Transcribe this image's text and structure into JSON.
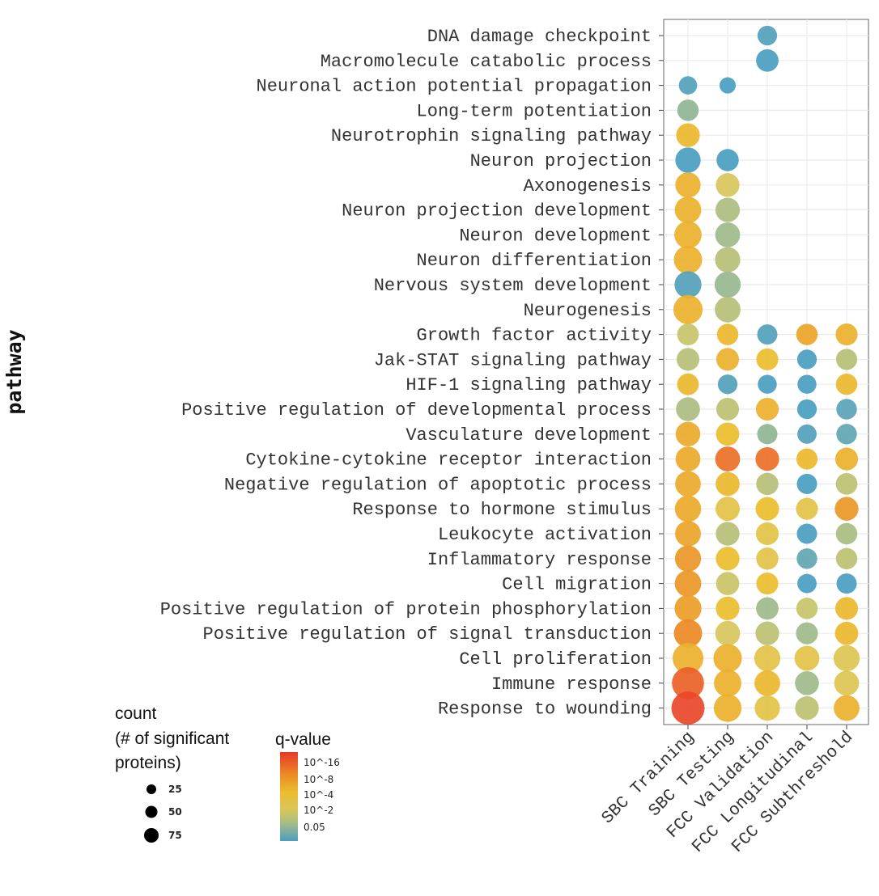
{
  "chart_data": {
    "type": "dot",
    "ylabel": "pathway",
    "xlabel": "",
    "categories_x": [
      "SBC Training",
      "SBC Testing",
      "FCC Validation",
      "FCC Longitudinal",
      "FCC Subthreshold"
    ],
    "categories_y": [
      "DNA damage checkpoint",
      "Macromolecule catabolic process",
      "Neuronal action potential propagation",
      "Long-term potentiation",
      "Neurotrophin signaling pathway",
      "Neuron projection",
      "Axonogenesis",
      "Neuron projection development",
      "Neuron development",
      "Neuron differentiation",
      "Nervous system development",
      "Neurogenesis",
      "Growth factor activity",
      "Jak-STAT signaling pathway",
      "HIF-1 signaling pathway",
      "Positive regulation of developmental process",
      "Vasculature development",
      "Cytokine-cytokine receptor interaction",
      "Negative regulation of apoptotic process",
      "Response to hormone stimulus",
      "Leukocyte activation",
      "Inflammatory response",
      "Cell migration",
      "Positive regulation of protein phosphorylation",
      "Positive regulation of signal transduction",
      "Cell proliferation",
      "Immune response",
      "Response to wounding"
    ],
    "points": [
      {
        "x": "FCC Validation",
        "y": "DNA damage checkpoint",
        "count": 18,
        "neg_log10_q": 1.4
      },
      {
        "x": "FCC Validation",
        "y": "Macromolecule catabolic process",
        "count": 28,
        "neg_log10_q": 1.2
      },
      {
        "x": "SBC Training",
        "y": "Neuronal action potential propagation",
        "count": 14,
        "neg_log10_q": 1.4
      },
      {
        "x": "SBC Testing",
        "y": "Neuronal action potential propagation",
        "count": 9,
        "neg_log10_q": 1.2
      },
      {
        "x": "SBC Training",
        "y": "Long-term potentiation",
        "count": 24,
        "neg_log10_q": 2.2
      },
      {
        "x": "SBC Training",
        "y": "Neurotrophin signaling pathway",
        "count": 33,
        "neg_log10_q": 6.5
      },
      {
        "x": "SBC Training",
        "y": "Neuron projection",
        "count": 40,
        "neg_log10_q": 1.3
      },
      {
        "x": "SBC Testing",
        "y": "Neuron projection",
        "count": 27,
        "neg_log10_q": 1.2
      },
      {
        "x": "SBC Training",
        "y": "Axonogenesis",
        "count": 40,
        "neg_log10_q": 7
      },
      {
        "x": "SBC Testing",
        "y": "Axonogenesis",
        "count": 33,
        "neg_log10_q": 4
      },
      {
        "x": "SBC Training",
        "y": "Neuron projection development",
        "count": 46,
        "neg_log10_q": 7
      },
      {
        "x": "SBC Testing",
        "y": "Neuron projection development",
        "count": 36,
        "neg_log10_q": 2.7
      },
      {
        "x": "SBC Training",
        "y": "Neuron development",
        "count": 50,
        "neg_log10_q": 7
      },
      {
        "x": "SBC Testing",
        "y": "Neuron development",
        "count": 38,
        "neg_log10_q": 2.4
      },
      {
        "x": "SBC Training",
        "y": "Neuron differentiation",
        "count": 55,
        "neg_log10_q": 7
      },
      {
        "x": "SBC Testing",
        "y": "Neuron differentiation",
        "count": 40,
        "neg_log10_q": 3
      },
      {
        "x": "SBC Training",
        "y": "Nervous system development",
        "count": 48,
        "neg_log10_q": 1.4
      },
      {
        "x": "SBC Testing",
        "y": "Nervous system development",
        "count": 44,
        "neg_log10_q": 2.3
      },
      {
        "x": "SBC Training",
        "y": "Neurogenesis",
        "count": 60,
        "neg_log10_q": 7
      },
      {
        "x": "SBC Testing",
        "y": "Neurogenesis",
        "count": 42,
        "neg_log10_q": 3
      },
      {
        "x": "SBC Training",
        "y": "Growth factor activity",
        "count": 25,
        "neg_log10_q": 3.5
      },
      {
        "x": "SBC Testing",
        "y": "Growth factor activity",
        "count": 24,
        "neg_log10_q": 6.5
      },
      {
        "x": "FCC Validation",
        "y": "Growth factor activity",
        "count": 20,
        "neg_log10_q": 1.4
      },
      {
        "x": "FCC Longitudinal",
        "y": "Growth factor activity",
        "count": 24,
        "neg_log10_q": 8
      },
      {
        "x": "FCC Subthreshold",
        "y": "Growth factor activity",
        "count": 26,
        "neg_log10_q": 7
      },
      {
        "x": "SBC Training",
        "y": "Jak-STAT signaling pathway",
        "count": 29,
        "neg_log10_q": 3
      },
      {
        "x": "SBC Testing",
        "y": "Jak-STAT signaling pathway",
        "count": 29,
        "neg_log10_q": 7
      },
      {
        "x": "FCC Validation",
        "y": "Jak-STAT signaling pathway",
        "count": 26,
        "neg_log10_q": 6
      },
      {
        "x": "FCC Longitudinal",
        "y": "Jak-STAT signaling pathway",
        "count": 18,
        "neg_log10_q": 1.3
      },
      {
        "x": "FCC Subthreshold",
        "y": "Jak-STAT signaling pathway",
        "count": 23,
        "neg_log10_q": 3
      },
      {
        "x": "SBC Training",
        "y": "HIF-1 signaling pathway",
        "count": 25,
        "neg_log10_q": 6.5
      },
      {
        "x": "SBC Testing",
        "y": "HIF-1 signaling pathway",
        "count": 18,
        "neg_log10_q": 1.4
      },
      {
        "x": "FCC Validation",
        "y": "HIF-1 signaling pathway",
        "count": 16,
        "neg_log10_q": 1.2
      },
      {
        "x": "FCC Longitudinal",
        "y": "HIF-1 signaling pathway",
        "count": 16,
        "neg_log10_q": 1.3
      },
      {
        "x": "FCC Subthreshold",
        "y": "HIF-1 signaling pathway",
        "count": 24,
        "neg_log10_q": 6.5
      },
      {
        "x": "SBC Training",
        "y": "Positive regulation of developmental process",
        "count": 34,
        "neg_log10_q": 2.7
      },
      {
        "x": "SBC Testing",
        "y": "Positive regulation of developmental process",
        "count": 29,
        "neg_log10_q": 3.2
      },
      {
        "x": "FCC Validation",
        "y": "Positive regulation of developmental process",
        "count": 29,
        "neg_log10_q": 7
      },
      {
        "x": "FCC Longitudinal",
        "y": "Positive regulation of developmental process",
        "count": 18,
        "neg_log10_q": 1.3
      },
      {
        "x": "FCC Subthreshold",
        "y": "Positive regulation of developmental process",
        "count": 21,
        "neg_log10_q": 1.5
      },
      {
        "x": "SBC Training",
        "y": "Vasculature development",
        "count": 37,
        "neg_log10_q": 7.5
      },
      {
        "x": "SBC Testing",
        "y": "Vasculature development",
        "count": 31,
        "neg_log10_q": 6
      },
      {
        "x": "FCC Validation",
        "y": "Vasculature development",
        "count": 20,
        "neg_log10_q": 2.2
      },
      {
        "x": "FCC Longitudinal",
        "y": "Vasculature development",
        "count": 17,
        "neg_log10_q": 1.4
      },
      {
        "x": "FCC Subthreshold",
        "y": "Vasculature development",
        "count": 21,
        "neg_log10_q": 1.6
      },
      {
        "x": "SBC Training",
        "y": "Cytokine-cytokine receptor interaction",
        "count": 38,
        "neg_log10_q": 7.5
      },
      {
        "x": "SBC Testing",
        "y": "Cytokine-cytokine receptor interaction",
        "count": 38,
        "neg_log10_q": 12
      },
      {
        "x": "FCC Validation",
        "y": "Cytokine-cytokine receptor interaction",
        "count": 33,
        "neg_log10_q": 12
      },
      {
        "x": "FCC Longitudinal",
        "y": "Cytokine-cytokine receptor interaction",
        "count": 23,
        "neg_log10_q": 6.5
      },
      {
        "x": "FCC Subthreshold",
        "y": "Cytokine-cytokine receptor interaction",
        "count": 29,
        "neg_log10_q": 7
      },
      {
        "x": "SBC Training",
        "y": "Negative regulation of apoptotic process",
        "count": 42,
        "neg_log10_q": 7.5
      },
      {
        "x": "SBC Testing",
        "y": "Negative regulation of apoptotic process",
        "count": 34,
        "neg_log10_q": 6.5
      },
      {
        "x": "FCC Validation",
        "y": "Negative regulation of apoptotic process",
        "count": 27,
        "neg_log10_q": 3
      },
      {
        "x": "FCC Longitudinal",
        "y": "Negative regulation of apoptotic process",
        "count": 20,
        "neg_log10_q": 1.2
      },
      {
        "x": "FCC Subthreshold",
        "y": "Negative regulation of apoptotic process",
        "count": 25,
        "neg_log10_q": 3.2
      },
      {
        "x": "SBC Training",
        "y": "Response to hormone stimulus",
        "count": 45,
        "neg_log10_q": 7.5
      },
      {
        "x": "SBC Testing",
        "y": "Response to hormone stimulus",
        "count": 35,
        "neg_log10_q": 5
      },
      {
        "x": "FCC Validation",
        "y": "Response to hormone stimulus",
        "count": 32,
        "neg_log10_q": 6
      },
      {
        "x": "FCC Longitudinal",
        "y": "Response to hormone stimulus",
        "count": 26,
        "neg_log10_q": 5
      },
      {
        "x": "FCC Subthreshold",
        "y": "Response to hormone stimulus",
        "count": 33,
        "neg_log10_q": 9
      },
      {
        "x": "SBC Training",
        "y": "Leukocyte activation",
        "count": 42,
        "neg_log10_q": 8
      },
      {
        "x": "SBC Testing",
        "y": "Leukocyte activation",
        "count": 33,
        "neg_log10_q": 3
      },
      {
        "x": "FCC Validation",
        "y": "Leukocyte activation",
        "count": 29,
        "neg_log10_q": 5
      },
      {
        "x": "FCC Longitudinal",
        "y": "Leukocyte activation",
        "count": 20,
        "neg_log10_q": 1.2
      },
      {
        "x": "FCC Subthreshold",
        "y": "Leukocyte activation",
        "count": 24,
        "neg_log10_q": 2.6
      },
      {
        "x": "SBC Training",
        "y": "Inflammatory response",
        "count": 44,
        "neg_log10_q": 9
      },
      {
        "x": "SBC Testing",
        "y": "Inflammatory response",
        "count": 33,
        "neg_log10_q": 6
      },
      {
        "x": "FCC Validation",
        "y": "Inflammatory response",
        "count": 27,
        "neg_log10_q": 5
      },
      {
        "x": "FCC Longitudinal",
        "y": "Inflammatory response",
        "count": 21,
        "neg_log10_q": 1.6
      },
      {
        "x": "FCC Subthreshold",
        "y": "Inflammatory response",
        "count": 24,
        "neg_log10_q": 3.2
      },
      {
        "x": "SBC Training",
        "y": "Cell migration",
        "count": 46,
        "neg_log10_q": 9
      },
      {
        "x": "SBC Testing",
        "y": "Cell migration",
        "count": 31,
        "neg_log10_q": 3.6
      },
      {
        "x": "FCC Validation",
        "y": "Cell migration",
        "count": 26,
        "neg_log10_q": 6
      },
      {
        "x": "FCC Longitudinal",
        "y": "Cell migration",
        "count": 17,
        "neg_log10_q": 1.3
      },
      {
        "x": "FCC Subthreshold",
        "y": "Cell migration",
        "count": 20,
        "neg_log10_q": 1.3
      },
      {
        "x": "SBC Training",
        "y": "Positive regulation of protein phosphorylation",
        "count": 48,
        "neg_log10_q": 8.5
      },
      {
        "x": "SBC Testing",
        "y": "Positive regulation of protein phosphorylation",
        "count": 33,
        "neg_log10_q": 6
      },
      {
        "x": "FCC Validation",
        "y": "Positive regulation of protein phosphorylation",
        "count": 28,
        "neg_log10_q": 2.4
      },
      {
        "x": "FCC Longitudinal",
        "y": "Positive regulation of protein phosphorylation",
        "count": 24,
        "neg_log10_q": 3.5
      },
      {
        "x": "FCC Subthreshold",
        "y": "Positive regulation of protein phosphorylation",
        "count": 29,
        "neg_log10_q": 6.5
      },
      {
        "x": "SBC Training",
        "y": "Positive regulation of signal transduction",
        "count": 55,
        "neg_log10_q": 10
      },
      {
        "x": "SBC Testing",
        "y": "Positive regulation of signal transduction",
        "count": 38,
        "neg_log10_q": 4
      },
      {
        "x": "FCC Validation",
        "y": "Positive regulation of signal transduction",
        "count": 33,
        "neg_log10_q": 3.2
      },
      {
        "x": "FCC Longitudinal",
        "y": "Positive regulation of signal transduction",
        "count": 26,
        "neg_log10_q": 2.4
      },
      {
        "x": "FCC Subthreshold",
        "y": "Positive regulation of signal transduction",
        "count": 31,
        "neg_log10_q": 6.5
      },
      {
        "x": "SBC Training",
        "y": "Cell proliferation",
        "count": 70,
        "neg_log10_q": 7
      },
      {
        "x": "SBC Testing",
        "y": "Cell proliferation",
        "count": 56,
        "neg_log10_q": 7
      },
      {
        "x": "FCC Validation",
        "y": "Cell proliferation",
        "count": 44,
        "neg_log10_q": 5
      },
      {
        "x": "FCC Longitudinal",
        "y": "Cell proliferation",
        "count": 38,
        "neg_log10_q": 5
      },
      {
        "x": "FCC Subthreshold",
        "y": "Cell proliferation",
        "count": 44,
        "neg_log10_q": 4.5
      },
      {
        "x": "SBC Training",
        "y": "Immune response",
        "count": 78,
        "neg_log10_q": 13
      },
      {
        "x": "SBC Testing",
        "y": "Immune response",
        "count": 50,
        "neg_log10_q": 7
      },
      {
        "x": "FCC Validation",
        "y": "Immune response",
        "count": 42,
        "neg_log10_q": 6.5
      },
      {
        "x": "FCC Longitudinal",
        "y": "Immune response",
        "count": 34,
        "neg_log10_q": 2.4
      },
      {
        "x": "FCC Subthreshold",
        "y": "Immune response",
        "count": 38,
        "neg_log10_q": 4.5
      },
      {
        "x": "SBC Training",
        "y": "Response to wounding",
        "count": 85,
        "neg_log10_q": 15
      },
      {
        "x": "SBC Testing",
        "y": "Response to wounding",
        "count": 52,
        "neg_log10_q": 7
      },
      {
        "x": "FCC Validation",
        "y": "Response to wounding",
        "count": 40,
        "neg_log10_q": 5
      },
      {
        "x": "FCC Longitudinal",
        "y": "Response to wounding",
        "count": 33,
        "neg_log10_q": 3.2
      },
      {
        "x": "FCC Subthreshold",
        "y": "Response to wounding",
        "count": 42,
        "neg_log10_q": 7
      }
    ],
    "legend": {
      "size_title_lines": [
        "count",
        "(# of significant",
        "proteins)"
      ],
      "size_values": [
        25,
        50,
        75
      ],
      "color_title": "q-value",
      "color_labels": [
        "10^-16",
        "10^-8",
        "10^-4",
        "10^-2",
        "0.05"
      ],
      "color_stops": [
        "#e8382a",
        "#ec8a24",
        "#ecbd2d",
        "#d8c65c",
        "#a6bc85",
        "#4a9ec0"
      ]
    },
    "grid": true
  }
}
